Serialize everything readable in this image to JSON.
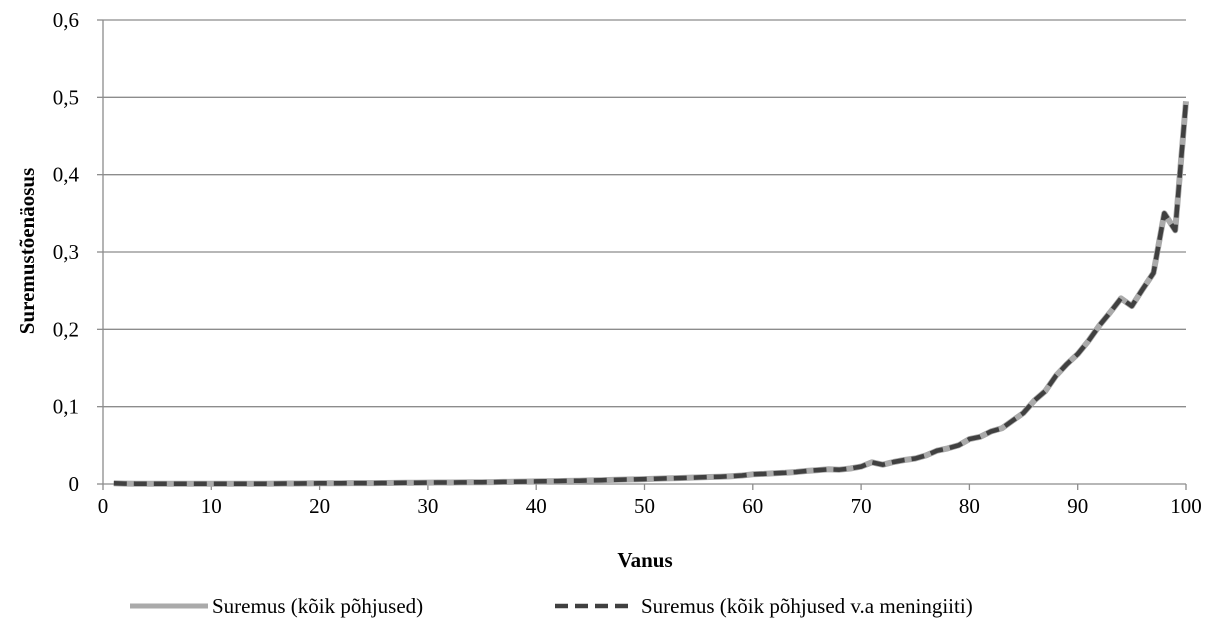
{
  "chart_data": {
    "type": "line",
    "title": "",
    "xlabel": "Vanus",
    "ylabel": "Suremustõenäosus",
    "xlim": [
      0,
      100
    ],
    "ylim": [
      0,
      0.6
    ],
    "x_ticks": [
      0,
      10,
      20,
      30,
      40,
      50,
      60,
      70,
      80,
      90,
      100
    ],
    "x_tick_labels": [
      "0",
      "10",
      "20",
      "30",
      "40",
      "50",
      "60",
      "70",
      "80",
      "90",
      "100"
    ],
    "y_ticks": [
      0,
      0.1,
      0.2,
      0.3,
      0.4,
      0.5,
      0.6
    ],
    "y_tick_labels": [
      "0",
      "0,1",
      "0,2",
      "0,3",
      "0,4",
      "0,5",
      "0,6"
    ],
    "grid": "horizontal",
    "legend_position": "bottom",
    "series": [
      {
        "name": "Suremus (kõik põhjused)",
        "color": "#aaaaaa",
        "style": "solid",
        "x": [
          1,
          2,
          3,
          4,
          5,
          6,
          7,
          8,
          9,
          10,
          11,
          12,
          13,
          14,
          15,
          16,
          17,
          18,
          19,
          20,
          21,
          22,
          23,
          24,
          25,
          26,
          27,
          28,
          29,
          30,
          31,
          32,
          33,
          34,
          35,
          36,
          37,
          38,
          39,
          40,
          41,
          42,
          43,
          44,
          45,
          46,
          47,
          48,
          49,
          50,
          51,
          52,
          53,
          54,
          55,
          56,
          57,
          58,
          59,
          60,
          61,
          62,
          63,
          64,
          65,
          66,
          67,
          68,
          69,
          70,
          71,
          72,
          73,
          74,
          75,
          76,
          77,
          78,
          79,
          80,
          81,
          82,
          83,
          84,
          85,
          86,
          87,
          88,
          89,
          90,
          91,
          92,
          93,
          94,
          95,
          96,
          97,
          98,
          99,
          100
        ],
        "values": [
          0.001,
          0.0005,
          0.0004,
          0.0003,
          0.0003,
          0.0003,
          0.0002,
          0.0002,
          0.0002,
          0.0002,
          0.0002,
          0.0002,
          0.0002,
          0.0003,
          0.0004,
          0.0005,
          0.0006,
          0.0007,
          0.0008,
          0.0009,
          0.001,
          0.001,
          0.0011,
          0.0011,
          0.0012,
          0.0013,
          0.0014,
          0.0015,
          0.0016,
          0.0018,
          0.0019,
          0.002,
          0.0021,
          0.0022,
          0.0023,
          0.0025,
          0.0027,
          0.0029,
          0.0031,
          0.0033,
          0.0035,
          0.0037,
          0.004,
          0.0043,
          0.0046,
          0.0049,
          0.0053,
          0.0057,
          0.006,
          0.0064,
          0.0068,
          0.0072,
          0.0076,
          0.008,
          0.0085,
          0.009,
          0.0095,
          0.0101,
          0.011,
          0.0125,
          0.013,
          0.014,
          0.0145,
          0.0155,
          0.017,
          0.018,
          0.019,
          0.0185,
          0.02,
          0.0225,
          0.028,
          0.025,
          0.0285,
          0.031,
          0.033,
          0.037,
          0.043,
          0.046,
          0.05,
          0.058,
          0.061,
          0.068,
          0.072,
          0.082,
          0.092,
          0.108,
          0.12,
          0.14,
          0.155,
          0.168,
          0.185,
          0.205,
          0.222,
          0.24,
          0.23,
          0.252,
          0.273,
          0.35,
          0.328,
          0.495
        ]
      },
      {
        "name": "Suremus (kõik põhjused v.a meningiiti)",
        "color": "#404040",
        "style": "dashed",
        "x": [
          1,
          2,
          3,
          4,
          5,
          6,
          7,
          8,
          9,
          10,
          11,
          12,
          13,
          14,
          15,
          16,
          17,
          18,
          19,
          20,
          21,
          22,
          23,
          24,
          25,
          26,
          27,
          28,
          29,
          30,
          31,
          32,
          33,
          34,
          35,
          36,
          37,
          38,
          39,
          40,
          41,
          42,
          43,
          44,
          45,
          46,
          47,
          48,
          49,
          50,
          51,
          52,
          53,
          54,
          55,
          56,
          57,
          58,
          59,
          60,
          61,
          62,
          63,
          64,
          65,
          66,
          67,
          68,
          69,
          70,
          71,
          72,
          73,
          74,
          75,
          76,
          77,
          78,
          79,
          80,
          81,
          82,
          83,
          84,
          85,
          86,
          87,
          88,
          89,
          90,
          91,
          92,
          93,
          94,
          95,
          96,
          97,
          98,
          99,
          100
        ],
        "values": [
          0.001,
          0.0005,
          0.0004,
          0.0003,
          0.0003,
          0.0003,
          0.0002,
          0.0002,
          0.0002,
          0.0002,
          0.0002,
          0.0002,
          0.0002,
          0.0003,
          0.0004,
          0.0005,
          0.0006,
          0.0007,
          0.0008,
          0.0009,
          0.001,
          0.001,
          0.0011,
          0.0011,
          0.0012,
          0.0013,
          0.0014,
          0.0015,
          0.0016,
          0.0018,
          0.0019,
          0.002,
          0.0021,
          0.0022,
          0.0023,
          0.0025,
          0.0027,
          0.0029,
          0.0031,
          0.0033,
          0.0035,
          0.0037,
          0.004,
          0.0043,
          0.0046,
          0.0049,
          0.0053,
          0.0057,
          0.006,
          0.0064,
          0.0068,
          0.0072,
          0.0076,
          0.008,
          0.0085,
          0.009,
          0.0095,
          0.0101,
          0.011,
          0.0125,
          0.013,
          0.014,
          0.0145,
          0.0155,
          0.017,
          0.018,
          0.019,
          0.0185,
          0.02,
          0.0225,
          0.028,
          0.025,
          0.0285,
          0.031,
          0.033,
          0.037,
          0.043,
          0.046,
          0.05,
          0.058,
          0.061,
          0.068,
          0.072,
          0.082,
          0.092,
          0.108,
          0.12,
          0.14,
          0.155,
          0.168,
          0.185,
          0.205,
          0.222,
          0.24,
          0.23,
          0.252,
          0.273,
          0.35,
          0.328,
          0.495
        ]
      }
    ]
  }
}
